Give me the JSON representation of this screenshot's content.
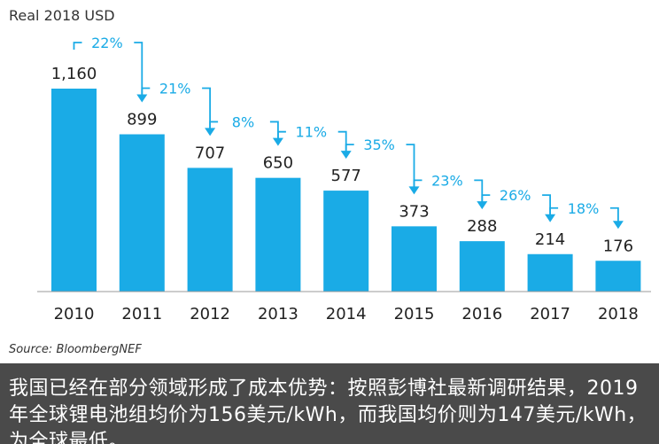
{
  "chart_data": {
    "type": "bar",
    "ylabel": "Real 2018 USD",
    "source": "Source: BloombergNEF",
    "categories": [
      "2010",
      "2011",
      "2012",
      "2013",
      "2014",
      "2015",
      "2016",
      "2017",
      "2018"
    ],
    "values": [
      1160,
      899,
      707,
      650,
      577,
      373,
      288,
      214,
      176
    ],
    "value_labels": [
      "1,160",
      "899",
      "707",
      "650",
      "577",
      "373",
      "288",
      "214",
      "176"
    ],
    "declines": [
      "22%",
      "21%",
      "8%",
      "11%",
      "35%",
      "23%",
      "26%",
      "18%"
    ],
    "ylim": [
      0,
      1160
    ],
    "grid": false,
    "bar_color": "#1aabe6",
    "annotation_color": "#1aabe6"
  },
  "caption": {
    "text": "我国已经在部分领域形成了成本优势：按照彭博社最新调研结果，2019年全球锂电池组均价为156美元/kWh，而我国均价则为147美元/kWh，为全球最低。",
    "background": "#4a4a4a",
    "color": "#ffffff"
  }
}
